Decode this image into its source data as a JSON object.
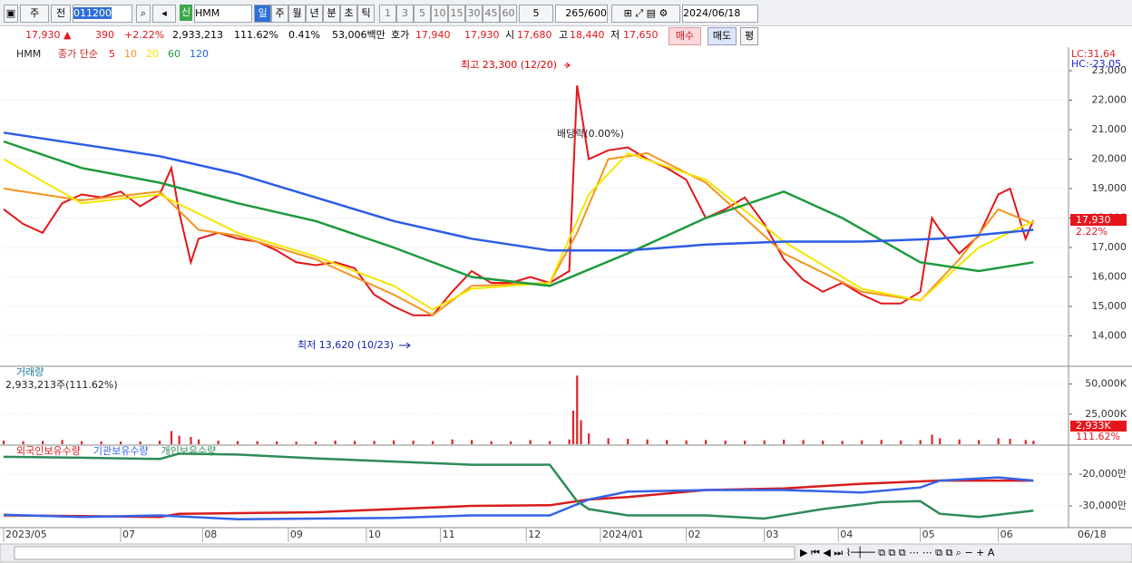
{
  "toolbar": {
    "period": "주",
    "prev": "전",
    "code": "011200",
    "badge": "신",
    "name": "HMM",
    "intervals": [
      "일",
      "주",
      "월",
      "년",
      "분",
      "초",
      "틱"
    ],
    "steps": [
      "1",
      "3",
      "5",
      "10",
      "15",
      "30",
      "45",
      "60"
    ],
    "step": "5",
    "count": "265/600",
    "date": "2024/06/18"
  },
  "quote_bar": {
    "price": "17,930 ▲",
    "change": "390",
    "change_pct": "+2.22%",
    "volume": "2,933,213",
    "volume_ratio": "111.62%",
    "turnover": "0.41%",
    "amount": "53,006백만",
    "ask_label": "호가",
    "ask": "17,940",
    "bid": "17,930",
    "open_label": "시",
    "open": "17,680",
    "high_label": "고",
    "high": "18,440",
    "low_label": "저",
    "low": "17,650",
    "buy": "매수",
    "sell": "매도",
    "avg": "평"
  },
  "chart_data": [
    {
      "type": "line",
      "title": "HMM",
      "legend_title": "종가 단순",
      "xlim": [
        0,
        273
      ],
      "ylim": [
        13000,
        23800
      ],
      "yticks": [
        {
          "value": 14000,
          "label": "14,000"
        },
        {
          "value": 15000,
          "label": "15,000"
        },
        {
          "value": 16000,
          "label": "16,000"
        },
        {
          "value": 17000,
          "label": "17,000"
        },
        {
          "value": 18000,
          "label": "18,000"
        },
        {
          "value": 19000,
          "label": "19,000"
        },
        {
          "value": 20000,
          "label": "20,000"
        },
        {
          "value": 21000,
          "label": "21,000"
        },
        {
          "value": 22000,
          "label": "22,000"
        },
        {
          "value": 23000,
          "label": "23,000"
        }
      ],
      "corner_labels": [
        "LC:31,64",
        "HC:-23,05"
      ],
      "annotations": [
        "최고 23,300 (12/20)",
        "최저 13,620 (10/23)",
        "배당락(0.00%)"
      ],
      "last_price": "17,930",
      "last_change": "2.22%",
      "series": [
        {
          "name": "5",
          "color": "#e4161b",
          "x": [
            0,
            5,
            10,
            15,
            20,
            25,
            30,
            35,
            40,
            43,
            45,
            48,
            50,
            55,
            60,
            65,
            70,
            75,
            80,
            85,
            90,
            95,
            100,
            105,
            110,
            115,
            120,
            125,
            130,
            135,
            140,
            145,
            147,
            150,
            155,
            160,
            165,
            170,
            175,
            180,
            185,
            190,
            195,
            200,
            205,
            210,
            215,
            220,
            225,
            230,
            235,
            238,
            240,
            245,
            250,
            255,
            258,
            262,
            264
          ],
          "values": [
            18300,
            17800,
            17500,
            18500,
            18800,
            18700,
            18900,
            18400,
            18800,
            19700,
            18200,
            16500,
            17300,
            17500,
            17300,
            17200,
            16900,
            16500,
            16400,
            16500,
            16300,
            15400,
            15000,
            14700,
            14700,
            15500,
            16200,
            15800,
            15800,
            16000,
            15800,
            16200,
            22500,
            20000,
            20300,
            20400,
            20000,
            19700,
            19300,
            18000,
            18300,
            18700,
            17800,
            16600,
            15900,
            15500,
            15800,
            15400,
            15100,
            15100,
            15500,
            18000,
            17600,
            16800,
            17400,
            18800,
            19000,
            17300,
            17930
          ]
        },
        {
          "name": "10",
          "color": "#f7941d",
          "x": [
            0,
            20,
            40,
            50,
            60,
            80,
            100,
            110,
            120,
            140,
            147,
            155,
            165,
            180,
            200,
            220,
            235,
            245,
            255,
            264
          ],
          "values": [
            19000,
            18600,
            18900,
            17600,
            17400,
            16600,
            15400,
            14700,
            15700,
            15800,
            17500,
            20000,
            20200,
            19200,
            16800,
            15500,
            15200,
            16600,
            18300,
            17800
          ]
        },
        {
          "name": "20",
          "color": "#f3e600",
          "x": [
            0,
            20,
            40,
            60,
            80,
            100,
            110,
            120,
            140,
            150,
            160,
            180,
            200,
            220,
            235,
            250,
            264
          ],
          "values": [
            20000,
            18500,
            18800,
            17500,
            16700,
            15700,
            14900,
            15600,
            15800,
            18800,
            20200,
            19300,
            17200,
            15600,
            15200,
            17000,
            17900
          ]
        },
        {
          "name": "60",
          "color": "#1e9a3c",
          "x": [
            0,
            20,
            40,
            60,
            80,
            100,
            120,
            140,
            160,
            180,
            200,
            215,
            235,
            250,
            264
          ],
          "values": [
            20600,
            19700,
            19200,
            18500,
            17900,
            17000,
            16000,
            15700,
            16800,
            18000,
            18900,
            18000,
            16500,
            16200,
            16500
          ]
        },
        {
          "name": "120",
          "color": "#2b5ce6",
          "x": [
            0,
            20,
            40,
            60,
            80,
            100,
            120,
            140,
            160,
            180,
            200,
            220,
            240,
            264
          ],
          "values": [
            20900,
            20500,
            20100,
            19500,
            18700,
            17900,
            17300,
            16900,
            16900,
            17100,
            17200,
            17200,
            17300,
            17600
          ]
        }
      ]
    },
    {
      "type": "bar",
      "title": "거래량",
      "subtitle": "2,933,213주(111.62%)",
      "xlim": [
        0,
        273
      ],
      "ylim": [
        0,
        64000
      ],
      "yticks": [
        {
          "value": 25000,
          "label": "25,000K"
        },
        {
          "value": 50000,
          "label": "50,000K"
        }
      ],
      "last_label": "2,933K",
      "last_ratio": "111.62%",
      "color": "#d8262b",
      "x": [
        0,
        5,
        10,
        15,
        20,
        25,
        30,
        35,
        40,
        43,
        45,
        48,
        50,
        55,
        60,
        65,
        70,
        75,
        80,
        85,
        90,
        95,
        100,
        105,
        110,
        115,
        120,
        125,
        130,
        135,
        140,
        145,
        146,
        147,
        148,
        150,
        155,
        160,
        165,
        170,
        175,
        180,
        185,
        190,
        195,
        200,
        205,
        210,
        215,
        220,
        225,
        230,
        235,
        238,
        240,
        245,
        250,
        255,
        258,
        262,
        264
      ],
      "values": [
        3000,
        2500,
        2800,
        3500,
        2600,
        2400,
        2200,
        2300,
        3000,
        11000,
        7000,
        6000,
        4000,
        3000,
        2600,
        2500,
        2400,
        2200,
        2300,
        3000,
        2700,
        2800,
        3200,
        3000,
        2600,
        4000,
        3500,
        2500,
        2400,
        3500,
        2600,
        4000,
        28000,
        57000,
        20000,
        9000,
        5000,
        4500,
        4000,
        3500,
        3200,
        3500,
        3000,
        3000,
        3200,
        3800,
        3500,
        3000,
        2800,
        3200,
        3600,
        3000,
        3500,
        8000,
        5000,
        4000,
        3500,
        5000,
        4500,
        3500,
        2933
      ]
    },
    {
      "type": "line",
      "xlim": [
        0,
        273
      ],
      "ylim": [
        -36300,
        -11100
      ],
      "yticks": [
        {
          "value": -30000,
          "label": "-30,000만"
        },
        {
          "value": -20000,
          "label": "-20,000만"
        }
      ],
      "xticks": [
        {
          "value": 0,
          "label": "2023/05"
        },
        {
          "value": 30,
          "label": "07"
        },
        {
          "value": 51,
          "label": "08"
        },
        {
          "value": 73,
          "label": "09"
        },
        {
          "value": 93,
          "label": "10"
        },
        {
          "value": 112,
          "label": "11"
        },
        {
          "value": 134,
          "label": "12"
        },
        {
          "value": 153,
          "label": "2024/01"
        },
        {
          "value": 175,
          "label": "02"
        },
        {
          "value": 195,
          "label": "03"
        },
        {
          "value": 214,
          "label": "04"
        },
        {
          "value": 235,
          "label": "05"
        },
        {
          "value": 255,
          "label": "06"
        }
      ],
      "cursor_date": "06/18",
      "series": [
        {
          "name": "외국인보유수량",
          "color": "#d81c1c",
          "x": [
            0,
            20,
            40,
            45,
            60,
            80,
            100,
            120,
            140,
            150,
            160,
            180,
            200,
            220,
            240,
            264
          ],
          "values": [
            -33000,
            -33200,
            -33500,
            -32500,
            -32300,
            -32000,
            -31000,
            -30000,
            -29800,
            -28000,
            -27200,
            -25000,
            -24500,
            -23000,
            -22000,
            -22000
          ]
        },
        {
          "name": "기관보유수량",
          "color": "#3463e8",
          "x": [
            0,
            20,
            40,
            60,
            80,
            100,
            120,
            140,
            150,
            160,
            180,
            200,
            220,
            235,
            240,
            255,
            264
          ],
          "values": [
            -32800,
            -33500,
            -33000,
            -34200,
            -34000,
            -33800,
            -33000,
            -33000,
            -28000,
            -25500,
            -25000,
            -25000,
            -25800,
            -24200,
            -22000,
            -21000,
            -22000
          ]
        },
        {
          "name": "개인보유수량",
          "color": "#2e8b57",
          "x": [
            0,
            20,
            40,
            45,
            60,
            80,
            100,
            120,
            140,
            147,
            150,
            160,
            180,
            195,
            210,
            225,
            235,
            240,
            250,
            264
          ],
          "values": [
            -14500,
            -14800,
            -15200,
            -13500,
            -13800,
            -15000,
            -16000,
            -17000,
            -17000,
            -28500,
            -31000,
            -33000,
            -33000,
            -34000,
            -31000,
            -28800,
            -28500,
            -32500,
            -33500,
            -31500
          ]
        }
      ]
    }
  ]
}
